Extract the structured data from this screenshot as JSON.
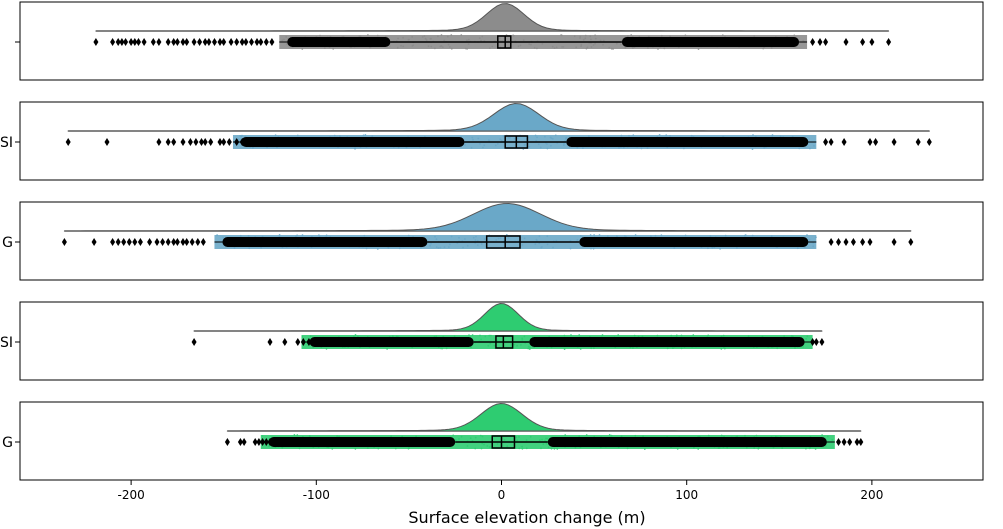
{
  "chart_data": {
    "type": "raincloud",
    "xlabel": "Surface elevation change (m)",
    "xlim": [
      -260,
      260
    ],
    "xticks": [
      -200,
      -100,
      0,
      100,
      200
    ],
    "xtick_labels": [
      "-200",
      "-100",
      "0",
      "100",
      "200"
    ],
    "grid": false,
    "panels": [
      {
        "label": "",
        "color": "#8c8c8c",
        "box": {
          "whislo": -60,
          "q1": -2,
          "median": 2,
          "q3": 5,
          "whishi": 65
        },
        "range": [
          -219,
          209
        ],
        "density_peak": 2,
        "density_spread": 10,
        "dense_points": [
          -120,
          165
        ],
        "outliers": [
          -219,
          -210,
          -207,
          -205,
          -203,
          -200,
          -198,
          -196,
          -193,
          -188,
          -185,
          -180,
          -177,
          -175,
          -172,
          -170,
          -166,
          -163,
          -160,
          -158,
          -155,
          -152,
          -150,
          -146,
          -143,
          -140,
          -138,
          -135,
          -132,
          -130,
          -127,
          -124,
          168,
          172,
          175,
          186,
          195,
          200,
          209
        ]
      },
      {
        "label": "SI",
        "color": "#6aa8c8",
        "box": {
          "whislo": -20,
          "q1": 2,
          "median": 8,
          "q3": 14,
          "whishi": 35
        },
        "range": [
          -234,
          231
        ],
        "density_peak": 8,
        "density_spread": 12,
        "dense_points": [
          -145,
          170
        ],
        "outliers": [
          -234,
          -213,
          -185,
          -180,
          -177,
          -172,
          -168,
          -165,
          -162,
          -160,
          -157,
          -152,
          -150,
          -147,
          -143,
          -140,
          -137,
          175,
          178,
          185,
          199,
          202,
          212,
          225,
          231
        ]
      },
      {
        "label": "G",
        "color": "#6aa8c8",
        "box": {
          "whislo": -40,
          "q1": -8,
          "median": 2,
          "q3": 10,
          "whishi": 42
        },
        "range": [
          -236,
          221
        ],
        "density_peak": 3,
        "density_spread": 18,
        "dense_points": [
          -155,
          170
        ],
        "outliers": [
          -236,
          -220,
          -210,
          -207,
          -204,
          -201,
          -198,
          -195,
          -190,
          -186,
          -183,
          -180,
          -177,
          -175,
          -172,
          -170,
          -167,
          -164,
          -161,
          178,
          182,
          186,
          190,
          195,
          199,
          212,
          221
        ]
      },
      {
        "label": "SI",
        "color": "#2ecc71",
        "box": {
          "whislo": -15,
          "q1": -3,
          "median": 1,
          "q3": 6,
          "whishi": 15
        },
        "range": [
          -166,
          173
        ],
        "density_peak": 0,
        "density_spread": 9,
        "dense_points": [
          -108,
          168
        ],
        "outliers": [
          -166,
          -125,
          -117,
          -110,
          -107,
          -104,
          -100,
          168,
          170,
          173
        ]
      },
      {
        "label": "G",
        "color": "#2ecc71",
        "box": {
          "whislo": -25,
          "q1": -5,
          "median": 0,
          "q3": 7,
          "whishi": 25
        },
        "range": [
          -148,
          194
        ],
        "density_peak": 0,
        "density_spread": 11,
        "dense_points": [
          -130,
          180
        ],
        "outliers": [
          -148,
          -141,
          -139,
          -133,
          -131,
          -129,
          -127,
          -125,
          -123,
          -121,
          182,
          185,
          188,
          192,
          194
        ]
      }
    ]
  }
}
